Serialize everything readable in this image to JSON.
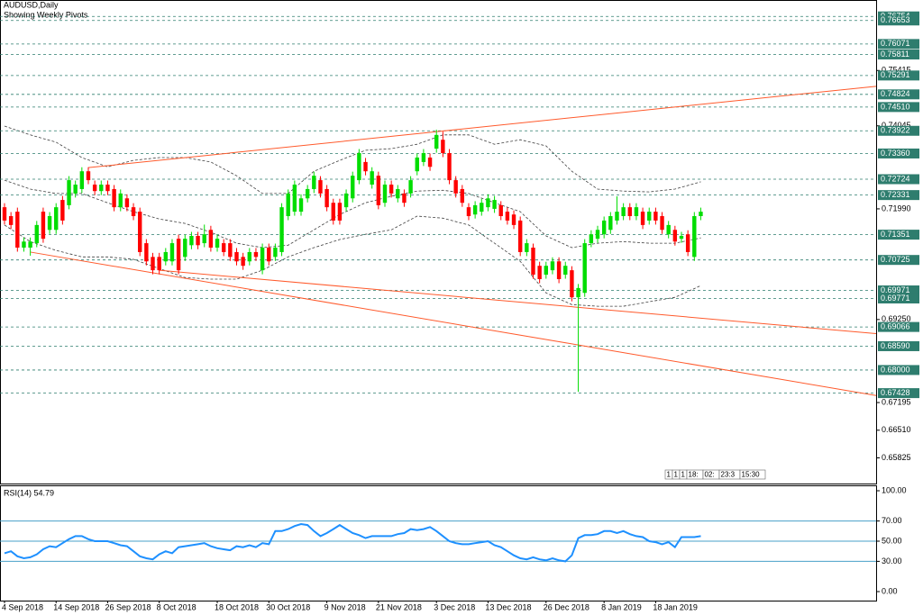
{
  "chart_data": [
    {
      "type": "candlestick",
      "title": "AUDUSD,Daily",
      "subtitle": "Showing Weekly Pivots",
      "categories": [
        "4 Sep 2018",
        null,
        null,
        null,
        null,
        null,
        null,
        null,
        "14 Sep 2018",
        null,
        null,
        null,
        null,
        null,
        null,
        null,
        "26 Sep 2018",
        null,
        null,
        null,
        null,
        null,
        null,
        null,
        "8 Oct 2018",
        null,
        null,
        null,
        null,
        null,
        null,
        null,
        null,
        "18 Oct 2018",
        null,
        null,
        null,
        null,
        null,
        null,
        null,
        "30 Oct 2018",
        null,
        null,
        null,
        null,
        null,
        null,
        null,
        null,
        "9 Nov 2018",
        null,
        null,
        null,
        null,
        null,
        null,
        null,
        "21 Nov 2018",
        null,
        null,
        null,
        null,
        null,
        null,
        null,
        null,
        "3 Dec 2018",
        null,
        null,
        null,
        null,
        null,
        null,
        null,
        "13 Dec 2018",
        null,
        null,
        null,
        null,
        null,
        null,
        null,
        null,
        "26 Dec 2018",
        null,
        null,
        null,
        null,
        null,
        null,
        null,
        null,
        "8 Jan 2019",
        null,
        null,
        null,
        null,
        null,
        null,
        null,
        "18 Jan 2019",
        null,
        null,
        null,
        null,
        null,
        null,
        null
      ],
      "open": [
        0.7203,
        0.7181,
        0.7192,
        0.7103,
        0.7103,
        0.7114,
        0.7192,
        0.7147,
        0.7147,
        0.7221,
        0.7208,
        0.7237,
        0.7248,
        0.7292,
        0.7259,
        0.7243,
        0.7259,
        0.7248,
        0.7203,
        0.7225,
        0.7203,
        0.7192,
        0.7114,
        0.708,
        0.708,
        0.7069,
        0.7069,
        0.7125,
        0.708,
        0.7109,
        0.7132,
        0.7114,
        0.7147,
        0.7103,
        0.7114,
        0.7114,
        0.7092,
        0.708,
        0.7069,
        0.7092,
        0.7047,
        0.7103,
        0.708,
        0.7092,
        0.7181,
        0.7192,
        0.7192,
        0.7225,
        0.7248,
        0.727,
        0.7248,
        0.7214,
        0.7214,
        0.7203,
        0.7225,
        0.727,
        0.7315,
        0.7259,
        0.7281,
        0.7214,
        0.7259,
        0.7225,
        0.7237,
        0.7237,
        0.7292,
        0.7315,
        0.7326,
        0.7348,
        0.737,
        0.7337,
        0.727,
        0.7248,
        0.7203,
        0.7185,
        0.7192,
        0.7203,
        0.7199,
        0.7208,
        0.7192,
        0.7185,
        0.717,
        0.7092,
        0.7103,
        0.7058,
        0.7036,
        0.7047,
        0.7069,
        0.7036,
        0.7047,
        0.698,
        0.6991,
        0.7114,
        0.7125,
        0.7136,
        0.7147,
        0.717,
        0.7181,
        0.7203,
        0.7181,
        0.7192,
        0.717,
        0.7192,
        0.7181,
        0.7136,
        0.7147,
        0.7125,
        0.7136,
        0.708,
        0.7181
      ],
      "high": [
        0.7213,
        0.7191,
        0.7202,
        0.7128,
        0.7128,
        0.7169,
        0.7202,
        0.7191,
        0.7213,
        0.7231,
        0.728,
        0.7269,
        0.7302,
        0.7302,
        0.7269,
        0.7269,
        0.7269,
        0.7258,
        0.7247,
        0.7235,
        0.7213,
        0.7202,
        0.7124,
        0.709,
        0.709,
        0.7102,
        0.7124,
        0.7135,
        0.7135,
        0.7142,
        0.7142,
        0.716,
        0.7157,
        0.7135,
        0.7124,
        0.7124,
        0.7102,
        0.709,
        0.7102,
        0.7102,
        0.7113,
        0.7113,
        0.7113,
        0.7213,
        0.7247,
        0.7269,
        0.7235,
        0.7258,
        0.7291,
        0.728,
        0.7258,
        0.7224,
        0.7224,
        0.7247,
        0.7291,
        0.7347,
        0.7325,
        0.7302,
        0.7291,
        0.7269,
        0.7269,
        0.7258,
        0.7247,
        0.728,
        0.7336,
        0.7347,
        0.7336,
        0.7395,
        0.739,
        0.7347,
        0.728,
        0.7258,
        0.7213,
        0.7218,
        0.7224,
        0.7235,
        0.7231,
        0.7218,
        0.7202,
        0.7195,
        0.718,
        0.7124,
        0.7113,
        0.7068,
        0.7068,
        0.7079,
        0.7079,
        0.7068,
        0.7057,
        0.7013,
        0.7124,
        0.7146,
        0.7157,
        0.718,
        0.7191,
        0.723,
        0.7213,
        0.7213,
        0.7213,
        0.7202,
        0.7202,
        0.7202,
        0.7191,
        0.7169,
        0.7157,
        0.7142,
        0.7146,
        0.7191,
        0.7202
      ],
      "low": [
        0.716,
        0.7149,
        0.7093,
        0.7093,
        0.7083,
        0.7104,
        0.7115,
        0.7137,
        0.7137,
        0.716,
        0.7198,
        0.7227,
        0.7238,
        0.726,
        0.7233,
        0.7233,
        0.7233,
        0.7193,
        0.7193,
        0.7193,
        0.7171,
        0.7082,
        0.7059,
        0.7037,
        0.7037,
        0.7059,
        0.7059,
        0.7037,
        0.707,
        0.7099,
        0.7099,
        0.7104,
        0.7093,
        0.7093,
        0.7082,
        0.707,
        0.7059,
        0.7048,
        0.7059,
        0.707,
        0.7037,
        0.7059,
        0.707,
        0.7082,
        0.7171,
        0.7182,
        0.7182,
        0.7215,
        0.7238,
        0.7227,
        0.7193,
        0.716,
        0.716,
        0.7193,
        0.7215,
        0.726,
        0.7282,
        0.7249,
        0.7198,
        0.7204,
        0.7227,
        0.7215,
        0.7204,
        0.7227,
        0.7282,
        0.7305,
        0.7293,
        0.7338,
        0.7327,
        0.726,
        0.7227,
        0.7204,
        0.7171,
        0.7175,
        0.7182,
        0.7193,
        0.7189,
        0.7171,
        0.716,
        0.7149,
        0.7082,
        0.7082,
        0.7026,
        0.7015,
        0.7026,
        0.7037,
        0.7015,
        0.7026,
        0.697,
        0.6746,
        0.6981,
        0.7104,
        0.7115,
        0.7126,
        0.7137,
        0.716,
        0.7171,
        0.7171,
        0.7171,
        0.7149,
        0.716,
        0.716,
        0.7137,
        0.7126,
        0.7108,
        0.7115,
        0.7082,
        0.707,
        0.7171
      ],
      "close": [
        0.717,
        0.7159,
        0.7103,
        0.7118,
        0.7118,
        0.7159,
        0.7125,
        0.7181,
        0.7203,
        0.717,
        0.727,
        0.7259,
        0.7292,
        0.727,
        0.7243,
        0.7259,
        0.7243,
        0.7203,
        0.7237,
        0.7203,
        0.7181,
        0.7092,
        0.7069,
        0.7047,
        0.7047,
        0.7092,
        0.7114,
        0.7047,
        0.7125,
        0.7132,
        0.7109,
        0.7136,
        0.7103,
        0.7125,
        0.7092,
        0.708,
        0.7069,
        0.7058,
        0.7092,
        0.708,
        0.7103,
        0.7069,
        0.7103,
        0.7203,
        0.7237,
        0.7259,
        0.7225,
        0.7248,
        0.7281,
        0.7237,
        0.7203,
        0.717,
        0.717,
        0.7237,
        0.7281,
        0.7337,
        0.7292,
        0.7292,
        0.7208,
        0.7259,
        0.7237,
        0.7248,
        0.7214,
        0.727,
        0.7326,
        0.7337,
        0.7303,
        0.7382,
        0.7337,
        0.727,
        0.7237,
        0.7214,
        0.7181,
        0.7208,
        0.7214,
        0.7225,
        0.7221,
        0.7181,
        0.717,
        0.7159,
        0.7092,
        0.7114,
        0.7036,
        0.7025,
        0.7058,
        0.7069,
        0.7025,
        0.7058,
        0.698,
        0.7003,
        0.7114,
        0.7136,
        0.7147,
        0.717,
        0.7181,
        0.7192,
        0.7203,
        0.7181,
        0.7203,
        0.7159,
        0.7192,
        0.717,
        0.7147,
        0.7159,
        0.7118,
        0.7132,
        0.7092,
        0.7181,
        0.7192
      ],
      "up_color": "#00dd00",
      "down_color": "#ff0000",
      "xlim": [
        -0.7,
        135.2
      ],
      "ylim": [
        0.6519,
        0.7716
      ],
      "yticks": [
        0.75415,
        0.74045,
        {
          "value": 0.7199,
          "label": "0.71990"
        },
        {
          "value": 0.6925,
          "label": "0.69250"
        },
        0.67195,
        {
          "value": 0.6651,
          "label": "0.66510"
        },
        0.65825
      ],
      "pivots": {
        "color": "#2e7d6e",
        "levels": [
          0.76754,
          0.76653,
          0.76071,
          0.75811,
          0.75291,
          0.74824,
          {
            "value": 0.7451,
            "label": "0.74510"
          },
          0.73922,
          {
            "value": 0.7336,
            "label": "0.73360"
          },
          0.72724,
          0.72331,
          0.71351,
          0.70725,
          0.69971,
          0.69771,
          0.69066,
          {
            "value": 0.6859,
            "label": "0.68590"
          },
          {
            "value": 0.68,
            "label": "0.68000"
          },
          0.67428
        ]
      },
      "bands": {
        "color": "#404040",
        "x": [
          0,
          4,
          8,
          12,
          16,
          20,
          24,
          28,
          32,
          36,
          40,
          44,
          48,
          52,
          56,
          60,
          64,
          68,
          72,
          76,
          80,
          84,
          88,
          92,
          96,
          100,
          104,
          108
        ],
        "series": [
          {
            "values": [
              0.7404,
              0.7382,
              0.7364,
              0.7326,
              0.7303,
              0.7319,
              0.7326,
              0.7326,
              0.7315,
              0.7281,
              0.7237,
              0.7237,
              0.7292,
              0.7319,
              0.7344,
              0.7348,
              0.7359,
              0.7382,
              0.7382,
              0.7359,
              0.737,
              0.7355,
              0.7292,
              0.7248,
              0.7243,
              0.7241,
              0.7248,
              0.7266
            ]
          },
          {
            "values": [
              0.727,
              0.7248,
              0.7237,
              0.7237,
              0.7214,
              0.7192,
              0.7174,
              0.7163,
              0.7141,
              0.7114,
              0.7103,
              0.7109,
              0.7147,
              0.7185,
              0.7214,
              0.723,
              0.7243,
              0.7245,
              0.7237,
              0.7214,
              0.7192,
              0.7132,
              0.7103,
              0.7114,
              0.7118,
              0.7114,
              0.7114,
              0.7127
            ]
          },
          {
            "values": [
              0.7159,
              0.7118,
              0.7096,
              0.708,
              0.708,
              0.7074,
              0.7051,
              0.7029,
              0.7025,
              0.7025,
              0.7047,
              0.708,
              0.7103,
              0.7123,
              0.7136,
              0.7147,
              0.7181,
              0.7176,
              0.7159,
              0.7114,
              0.7069,
              0.6991,
              0.6962,
              0.6958,
              0.6958,
              0.6969,
              0.698,
              0.7009
            ]
          }
        ]
      },
      "trendlines": {
        "color": "#ff5a2c",
        "lines": [
          {
            "x": [
              13,
              67
            ],
            "y": [
              0.7301,
              0.739
            ]
          },
          {
            "x": [
              4,
              89
            ],
            "y": [
              0.7092,
              0.6862
            ]
          },
          {
            "x": [
              24,
              92
            ],
            "y": [
              0.7047,
              0.6951
            ]
          }
        ]
      },
      "timer": [
        "1",
        "1",
        "1",
        "18:",
        "02:",
        "23:3",
        "15:30"
      ]
    },
    {
      "type": "line",
      "label": "RSI(14) 54.79",
      "color": "#1e90ff",
      "values": [
        38,
        40,
        35,
        33,
        34,
        37,
        42,
        45,
        44,
        48,
        52,
        55,
        55,
        52,
        50,
        50,
        50,
        48,
        46,
        45,
        40,
        35,
        33,
        32,
        37,
        40,
        38,
        44,
        45,
        46,
        47,
        48,
        45,
        43,
        42,
        41,
        45,
        44,
        46,
        44,
        48,
        47,
        60,
        60,
        62,
        65,
        67,
        66,
        60,
        55,
        58,
        62,
        66,
        62,
        58,
        56,
        53,
        55,
        55,
        55,
        55,
        57,
        58,
        62,
        61,
        62,
        64,
        60,
        55,
        50,
        48,
        47,
        47,
        48,
        49,
        50,
        46,
        44,
        40,
        36,
        33,
        32,
        34,
        32,
        31,
        33,
        31,
        30,
        36,
        53,
        56,
        56,
        57,
        60,
        60,
        58,
        60,
        57,
        55,
        54,
        50,
        49,
        47,
        49,
        44,
        54,
        54,
        54,
        55
      ],
      "ylim": [
        0,
        100
      ],
      "yticks": [
        {
          "value": 100,
          "label": "100.00"
        },
        {
          "value": 70,
          "label": "70.00"
        },
        {
          "value": 50,
          "label": "50.00"
        },
        {
          "value": 30,
          "label": "30.00"
        },
        {
          "value": 0,
          "label": "0.00"
        }
      ],
      "levels": [
        70,
        50,
        30
      ],
      "level_color": "#48a0c8"
    }
  ]
}
